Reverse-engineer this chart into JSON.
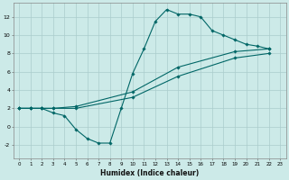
{
  "xlabel": "Humidex (Indice chaleur)",
  "bg_color": "#cceae8",
  "grid_color": "#aacccc",
  "line_color": "#006666",
  "xlim": [
    -0.5,
    23.5
  ],
  "ylim": [
    -3.5,
    13.5
  ],
  "xticks": [
    0,
    1,
    2,
    3,
    4,
    5,
    6,
    7,
    8,
    9,
    10,
    11,
    12,
    13,
    14,
    15,
    16,
    17,
    18,
    19,
    20,
    21,
    22,
    23
  ],
  "yticks": [
    -2,
    0,
    2,
    4,
    6,
    8,
    10,
    12
  ],
  "line1_x": [
    0,
    1,
    2,
    3,
    4,
    5,
    6,
    7,
    8,
    9,
    10,
    11,
    12,
    13,
    14,
    15,
    16,
    17,
    18,
    19,
    20,
    21,
    22
  ],
  "line1_y": [
    2,
    2,
    2,
    1.5,
    1.2,
    -0.3,
    -1.3,
    -1.8,
    -1.8,
    2,
    5.8,
    8.5,
    11.5,
    12.8,
    12.3,
    12.3,
    12.0,
    10.5,
    10.0,
    9.5,
    9.0,
    8.8,
    8.5
  ],
  "line2_x": [
    0,
    1,
    2,
    3,
    5,
    10,
    14,
    19,
    22
  ],
  "line2_y": [
    2,
    2,
    2,
    2,
    2.2,
    3.8,
    6.5,
    8.2,
    8.5
  ],
  "line3_x": [
    0,
    1,
    2,
    3,
    5,
    10,
    14,
    19,
    22
  ],
  "line3_y": [
    2,
    2,
    2,
    2,
    2.0,
    3.2,
    5.5,
    7.5,
    8.0
  ]
}
